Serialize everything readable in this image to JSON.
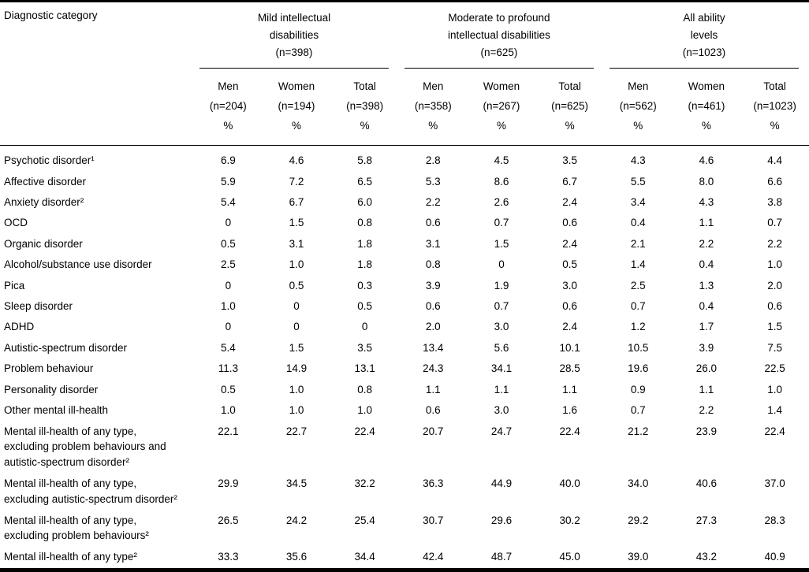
{
  "table": {
    "label_header": "Diagnostic category",
    "groups": [
      {
        "title": "Mild intellectual\ndisabilities\n(n=398)",
        "columns": [
          {
            "label": "Men",
            "n": "(n=204)",
            "unit": "%"
          },
          {
            "label": "Women",
            "n": "(n=194)",
            "unit": "%"
          },
          {
            "label": "Total",
            "n": "(n=398)",
            "unit": "%"
          }
        ]
      },
      {
        "title": "Moderate to profound\nintellectual disabilities\n(n=625)",
        "columns": [
          {
            "label": "Men",
            "n": "(n=358)",
            "unit": "%"
          },
          {
            "label": "Women",
            "n": "(n=267)",
            "unit": "%"
          },
          {
            "label": "Total",
            "n": "(n=625)",
            "unit": "%"
          }
        ]
      },
      {
        "title": "All ability\nlevels\n(n=1023)",
        "columns": [
          {
            "label": "Men",
            "n": "(n=562)",
            "unit": "%"
          },
          {
            "label": "Women",
            "n": "(n=461)",
            "unit": "%"
          },
          {
            "label": "Total",
            "n": "(n=1023)",
            "unit": "%"
          }
        ]
      }
    ],
    "rows": [
      {
        "label": "Psychotic disorder¹",
        "values": [
          "6.9",
          "4.6",
          "5.8",
          "2.8",
          "4.5",
          "3.5",
          "4.3",
          "4.6",
          "4.4"
        ]
      },
      {
        "label": "Affective disorder",
        "values": [
          "5.9",
          "7.2",
          "6.5",
          "5.3",
          "8.6",
          "6.7",
          "5.5",
          "8.0",
          "6.6"
        ]
      },
      {
        "label": "Anxiety disorder²",
        "values": [
          "5.4",
          "6.7",
          "6.0",
          "2.2",
          "2.6",
          "2.4",
          "3.4",
          "4.3",
          "3.8"
        ]
      },
      {
        "label": "OCD",
        "values": [
          "0",
          "1.5",
          "0.8",
          "0.6",
          "0.7",
          "0.6",
          "0.4",
          "1.1",
          "0.7"
        ]
      },
      {
        "label": "Organic disorder",
        "values": [
          "0.5",
          "3.1",
          "1.8",
          "3.1",
          "1.5",
          "2.4",
          "2.1",
          "2.2",
          "2.2"
        ]
      },
      {
        "label": "Alcohol/substance use disorder",
        "values": [
          "2.5",
          "1.0",
          "1.8",
          "0.8",
          "0",
          "0.5",
          "1.4",
          "0.4",
          "1.0"
        ]
      },
      {
        "label": "Pica",
        "values": [
          "0",
          "0.5",
          "0.3",
          "3.9",
          "1.9",
          "3.0",
          "2.5",
          "1.3",
          "2.0"
        ]
      },
      {
        "label": "Sleep disorder",
        "values": [
          "1.0",
          "0",
          "0.5",
          "0.6",
          "0.7",
          "0.6",
          "0.7",
          "0.4",
          "0.6"
        ]
      },
      {
        "label": "ADHD",
        "values": [
          "0",
          "0",
          "0",
          "2.0",
          "3.0",
          "2.4",
          "1.2",
          "1.7",
          "1.5"
        ]
      },
      {
        "label": "Autistic-spectrum disorder",
        "values": [
          "5.4",
          "1.5",
          "3.5",
          "13.4",
          "5.6",
          "10.1",
          "10.5",
          "3.9",
          "7.5"
        ]
      },
      {
        "label": "Problem behaviour",
        "values": [
          "11.3",
          "14.9",
          "13.1",
          "24.3",
          "34.1",
          "28.5",
          "19.6",
          "26.0",
          "22.5"
        ]
      },
      {
        "label": "Personality disorder",
        "values": [
          "0.5",
          "1.0",
          "0.8",
          "1.1",
          "1.1",
          "1.1",
          "0.9",
          "1.1",
          "1.0"
        ]
      },
      {
        "label": "Other mental ill-health",
        "values": [
          "1.0",
          "1.0",
          "1.0",
          "0.6",
          "3.0",
          "1.6",
          "0.7",
          "2.2",
          "1.4"
        ]
      },
      {
        "label": "Mental ill-health of any type,\nexcluding problem behaviours and\nautistic-spectrum disorder²",
        "values": [
          "22.1",
          "22.7",
          "22.4",
          "20.7",
          "24.7",
          "22.4",
          "21.2",
          "23.9",
          "22.4"
        ]
      },
      {
        "label": "Mental ill-health of any type,\nexcluding autistic-spectrum disorder²",
        "values": [
          "29.9",
          "34.5",
          "32.2",
          "36.3",
          "44.9",
          "40.0",
          "34.0",
          "40.6",
          "37.0"
        ]
      },
      {
        "label": "Mental ill-health of any type,\nexcluding problem behaviours²",
        "values": [
          "26.5",
          "24.2",
          "25.4",
          "30.7",
          "29.6",
          "30.2",
          "29.2",
          "27.3",
          "28.3"
        ]
      },
      {
        "label": "Mental ill-health of any type²",
        "values": [
          "33.3",
          "35.6",
          "34.4",
          "42.4",
          "48.7",
          "45.0",
          "39.0",
          "43.2",
          "40.9"
        ]
      }
    ]
  }
}
